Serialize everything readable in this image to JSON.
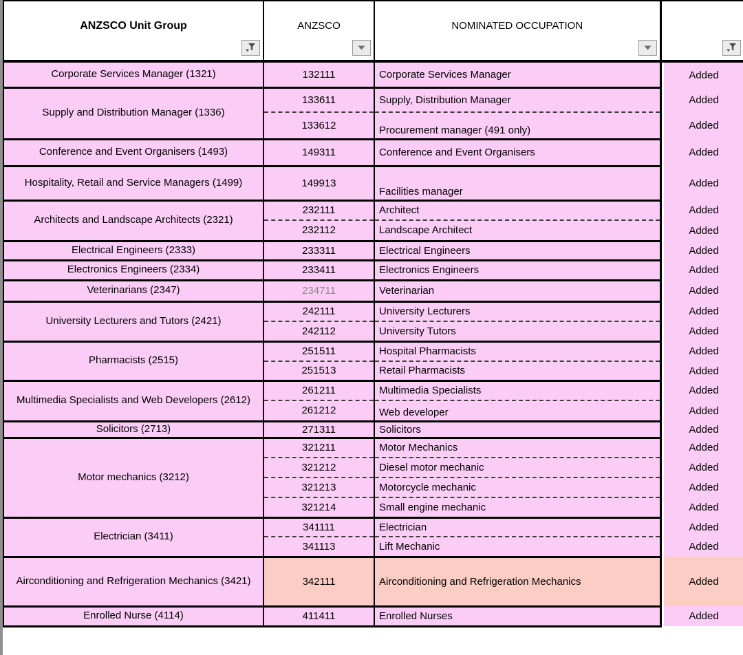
{
  "header": {
    "unit_group_label": "ANZSCO Unit Group",
    "anzsco_label": "ANZSCO",
    "occupation_label": "NOMINATED OCCUPATION",
    "status_label": ""
  },
  "icons": {
    "unit_group_filter": "funnel-filter-icon",
    "anzsco_dropdown": "chevron-down-icon",
    "occupation_dropdown": "chevron-down-icon",
    "status_filter": "funnel-filter-icon"
  },
  "colors": {
    "row_pink": "#fbcdf6",
    "highlight_salmon": "#fbcdc4",
    "muted_code": "#8a8a8a",
    "border": "#000000"
  },
  "groups": [
    {
      "label": "Corporate Services Manager (1321)",
      "rows": [
        {
          "code": "132111",
          "occupation": "Corporate Services Manager",
          "status": "Added"
        }
      ]
    },
    {
      "label": "Supply and Distribution Manager (1336)",
      "rows": [
        {
          "code": "133611",
          "occupation": "Supply, Distribution Manager",
          "status": "Added"
        },
        {
          "code": "133612",
          "occupation": "Procurement manager (491 only)",
          "status": "Added"
        }
      ]
    },
    {
      "label": "Conference and Event Organisers (1493)",
      "rows": [
        {
          "code": "149311",
          "occupation": "Conference and Event Organisers",
          "status": "Added"
        }
      ]
    },
    {
      "label": "Hospitality, Retail and Service Managers (1499)",
      "rows": [
        {
          "code": "149913",
          "occupation": "Facilities manager",
          "status": "Added"
        }
      ]
    },
    {
      "label": "Architects and Landscape Architects (2321)",
      "rows": [
        {
          "code": "232111",
          "occupation": "Architect",
          "status": "Added"
        },
        {
          "code": "232112",
          "occupation": "Landscape Architect",
          "status": "Added"
        }
      ]
    },
    {
      "label": "Electrical Engineers (2333)",
      "rows": [
        {
          "code": "233311",
          "occupation": "Electrical Engineers",
          "status": "Added"
        }
      ]
    },
    {
      "label": "Electronics Engineers (2334)",
      "rows": [
        {
          "code": "233411",
          "occupation": "Electronics Engineers",
          "status": "Added"
        }
      ]
    },
    {
      "label": "Veterinarians (2347)",
      "rows": [
        {
          "code": "234711",
          "occupation": "Veterinarian",
          "status": "Added",
          "code_muted": true
        }
      ]
    },
    {
      "label": "University Lecturers and Tutors (2421)",
      "rows": [
        {
          "code": "242111",
          "occupation": "University Lecturers",
          "status": "Added"
        },
        {
          "code": "242112",
          "occupation": "University  Tutors",
          "status": "Added"
        }
      ]
    },
    {
      "label": "Pharmacists (2515)",
      "rows": [
        {
          "code": "251511",
          "occupation": "Hospital Pharmacists",
          "status": "Added"
        },
        {
          "code": "251513",
          "occupation": "Retail Pharmacists",
          "status": "Added"
        }
      ]
    },
    {
      "label": "Multimedia Specialists and Web Developers (2612)",
      "rows": [
        {
          "code": "261211",
          "occupation": "Multimedia Specialists",
          "status": "Added"
        },
        {
          "code": "261212",
          "occupation": "Web developer",
          "status": "Added"
        }
      ]
    },
    {
      "label": "Solicitors (2713)",
      "rows": [
        {
          "code": "271311",
          "occupation": "Solicitors",
          "status": "Added"
        }
      ]
    },
    {
      "label": "Motor mechanics  (3212)",
      "rows": [
        {
          "code": "321211",
          "occupation": "Motor Mechanics",
          "status": "Added"
        },
        {
          "code": "321212",
          "occupation": "Diesel motor mechanic",
          "status": "Added"
        },
        {
          "code": "321213",
          "occupation": "Motorcycle mechanic",
          "status": "Added"
        },
        {
          "code": "321214",
          "occupation": "Small engine mechanic",
          "status": "Added"
        }
      ]
    },
    {
      "label": "Electrician (3411)",
      "rows": [
        {
          "code": "341111",
          "occupation": "Electrician",
          "status": "Added"
        },
        {
          "code": "341113",
          "occupation": "Lift Mechanic",
          "status": "Added"
        }
      ]
    },
    {
      "label": "Airconditioning and Refrigeration Mechanics (3421)",
      "rows": [
        {
          "code": "342111",
          "occupation": "Airconditioning and Refrigeration Mechanics",
          "status": "Added",
          "highlight": true
        }
      ]
    },
    {
      "label": "Enrolled Nurse (4114)",
      "rows": [
        {
          "code": "411411",
          "occupation": "Enrolled Nurses",
          "status": "Added"
        }
      ]
    }
  ]
}
